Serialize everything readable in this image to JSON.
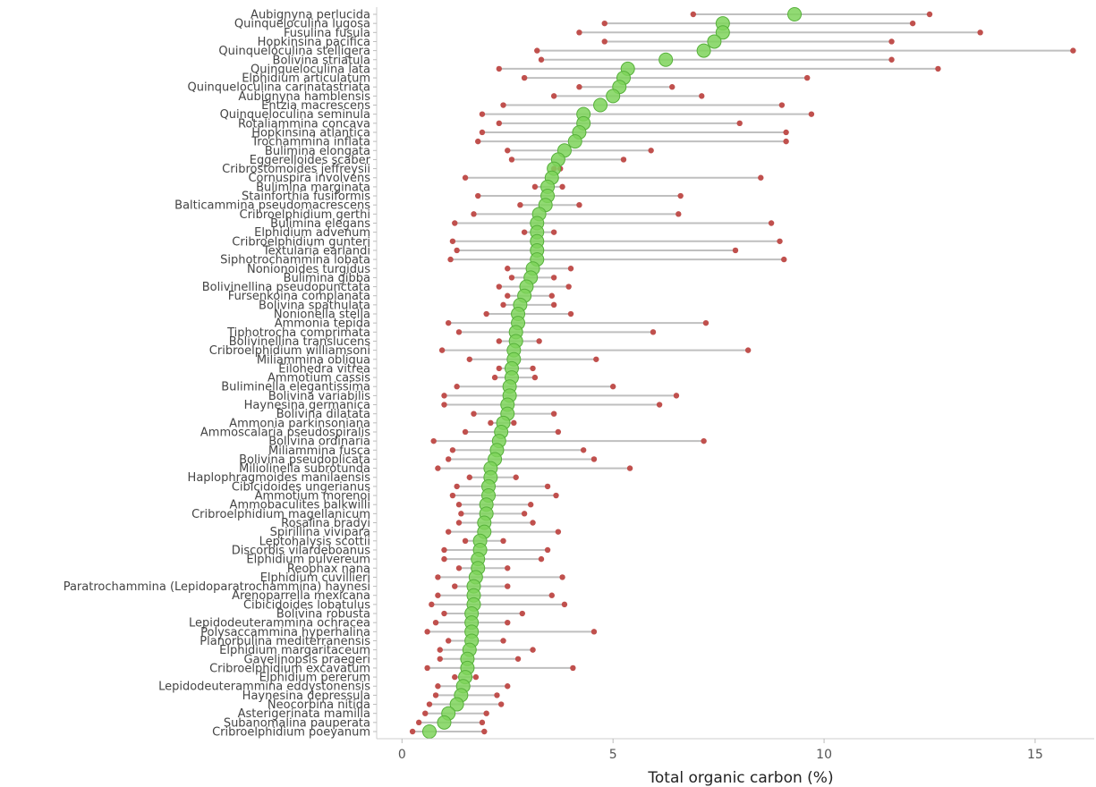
{
  "chart_data": {
    "type": "dumbbell",
    "title": "",
    "xlabel": "Total organic carbon (%)",
    "ylabel": "",
    "xlim": [
      -0.6,
      16.4
    ],
    "xticks": [
      0,
      5,
      10,
      15
    ],
    "grid": false,
    "legend": "none",
    "colors": {
      "mean": "#7ed35a",
      "mean_edge": "#56b03a",
      "range": "#c0504d",
      "line": "#bfbfbf"
    },
    "categories": [
      "Aubignyna perlucida",
      "Quinqueloculina lugosa",
      "Fusulina fusula",
      "Hopkinsina pacifica",
      "Quinqueloculina stelligera",
      "Bolivina striatula",
      "Quinqueloculina lata",
      "Elphidium articulatum",
      "Quinqueloculina carinatastriata",
      "Aubignyna hamblensis",
      "Entzia macrescens",
      "Quinqueloculina seminula",
      "Rotaliammina concava",
      "Hopkinsina atlantica",
      "Trochammina inflata",
      "Bulimina elongata",
      "Eggerelloides scaber",
      "Cribrostomoides jeffreysii",
      "Cornuspira involvens",
      "Bulimina marginata",
      "Stainforthia fusiformis",
      "Balticammina pseudomacrescens",
      "Cribroelphidium gerthi",
      "Bulimina elegans",
      "Elphidium advenum",
      "Cribroelphidium gunteri",
      "Textularia earlandi",
      "Siphotrochammina lobata",
      "Nonionoides turgidus",
      "Bulimina gibba",
      "Bolivinellina pseudopunctata",
      "Fursenkoina complanata",
      "Bolivina spathulata",
      "Nonionella stella",
      "Ammonia tepida",
      "Tiphotrocha comprimata",
      "Bolivinellina translucens",
      "Cribroelphidium williamsoni",
      "Miliammina obliqua",
      "Eilohedra vitrea",
      "Ammotium cassis",
      "Buliminella elegantissima",
      "Bolivina variabilis",
      "Haynesina germanica",
      "Bolivina dilatata",
      "Ammonia parkinsoniana",
      "Ammoscalaria pseudospiralis",
      "Bolivina ordinaria",
      "Miliammina fusca",
      "Bolivina pseudoplicata",
      "Miliolinella subrotunda",
      "Haplophragmoides manilaensis",
      "Cibicidoides ungerianus",
      "Ammotium morenoi",
      "Ammobaculites balkwilli",
      "Cribroelphidium magellanicum",
      "Rosalina bradyi",
      "Spirillina vivipara",
      "Leptohalysis scottii",
      "Discorbis vilardeboanus",
      "Elphidium pulvereum",
      "Reophax nana",
      "Elphidium cuvillieri",
      "Paratrochammina (Lepidoparatrochammina) haynesi",
      "Arenoparrella mexicana",
      "Cibicidoides lobatulus",
      "Bolivina robusta",
      "Lepidodeuterammina ochracea",
      "Polysaccammina hyperhalina",
      "Planorbulina mediterranensis",
      "Elphidium margaritaceum",
      "Gavelinopsis praegeri",
      "Cribroelphidium excavatum",
      "Elphidium pererum",
      "Lepidodeuterammina eddystonensis",
      "Haynesina depressula",
      "Neocorbina nitida",
      "Asterigerinata mamilla",
      "Subanomalina pauperata",
      "Cribroelphidium poeyanum"
    ],
    "series": [
      {
        "name": "Mean",
        "values": [
          9.3,
          7.6,
          7.6,
          7.4,
          7.15,
          6.25,
          5.35,
          5.25,
          5.15,
          5.0,
          4.7,
          4.3,
          4.3,
          4.2,
          4.1,
          3.85,
          3.7,
          3.6,
          3.55,
          3.45,
          3.45,
          3.4,
          3.25,
          3.2,
          3.2,
          3.2,
          3.2,
          3.2,
          3.1,
          3.05,
          2.95,
          2.9,
          2.8,
          2.75,
          2.75,
          2.7,
          2.7,
          2.65,
          2.65,
          2.6,
          2.6,
          2.55,
          2.55,
          2.5,
          2.5,
          2.4,
          2.35,
          2.3,
          2.25,
          2.2,
          2.1,
          2.1,
          2.05,
          2.05,
          2.0,
          2.0,
          1.95,
          1.95,
          1.85,
          1.85,
          1.8,
          1.8,
          1.75,
          1.7,
          1.7,
          1.7,
          1.65,
          1.65,
          1.65,
          1.65,
          1.6,
          1.55,
          1.55,
          1.5,
          1.45,
          1.4,
          1.3,
          1.1,
          1.0,
          0.65
        ]
      },
      {
        "name": "Minimum",
        "values": [
          6.9,
          4.8,
          4.2,
          4.8,
          3.2,
          3.3,
          2.3,
          2.9,
          4.2,
          3.6,
          2.4,
          1.9,
          2.3,
          1.9,
          1.8,
          2.5,
          2.6,
          3.6,
          1.5,
          3.15,
          1.8,
          2.8,
          1.7,
          1.25,
          2.9,
          1.2,
          1.3,
          1.15,
          2.5,
          2.6,
          2.3,
          2.5,
          2.4,
          2.0,
          1.1,
          1.35,
          2.3,
          0.95,
          1.6,
          2.3,
          2.2,
          1.3,
          1.0,
          1.0,
          1.7,
          2.1,
          1.5,
          0.75,
          1.2,
          1.1,
          0.85,
          1.6,
          1.3,
          1.2,
          1.35,
          1.4,
          1.35,
          1.1,
          1.5,
          1.0,
          1.0,
          1.35,
          0.85,
          1.25,
          0.85,
          0.7,
          1.0,
          0.8,
          0.6,
          1.1,
          0.9,
          0.9,
          0.6,
          1.25,
          0.85,
          0.8,
          0.65,
          0.55,
          0.4,
          0.25
        ]
      },
      {
        "name": "Maximum",
        "values": [
          12.5,
          12.1,
          13.7,
          11.6,
          15.9,
          11.6,
          12.7,
          9.6,
          6.4,
          7.1,
          9.0,
          9.7,
          8.0,
          9.1,
          9.1,
          5.9,
          5.25,
          3.75,
          8.5,
          3.8,
          6.6,
          4.2,
          6.55,
          8.75,
          3.6,
          8.95,
          7.9,
          9.05,
          4.0,
          3.6,
          3.95,
          3.55,
          3.6,
          4.0,
          7.2,
          5.95,
          3.25,
          8.2,
          4.6,
          3.1,
          3.15,
          5.0,
          6.5,
          6.1,
          3.6,
          2.65,
          3.7,
          7.15,
          4.3,
          4.55,
          5.4,
          2.7,
          3.45,
          3.65,
          3.05,
          2.9,
          3.1,
          3.7,
          2.4,
          3.45,
          3.3,
          2.5,
          3.8,
          2.5,
          3.55,
          3.85,
          2.85,
          2.5,
          4.55,
          2.4,
          3.1,
          2.75,
          4.05,
          1.75,
          2.5,
          2.25,
          2.35,
          2.0,
          1.9,
          1.95
        ]
      }
    ]
  }
}
